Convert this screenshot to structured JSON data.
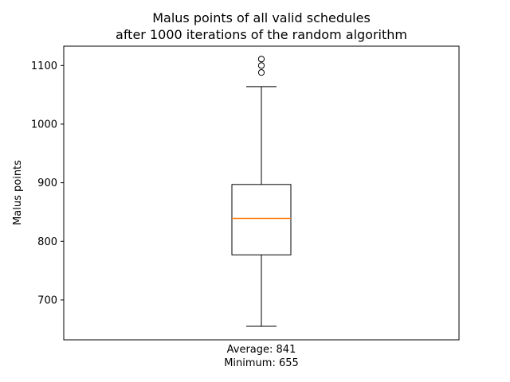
{
  "chart_data": {
    "type": "box",
    "title": "Malus points of all valid schedules",
    "subtitle": "after 1000 iterations of the random algorithm",
    "ylabel": "Malus points",
    "xlabel_lines": [
      "Average: 841",
      "Minimum: 655"
    ],
    "ylim": [
      632,
      1133
    ],
    "yticks": [
      700,
      800,
      900,
      1000,
      1100
    ],
    "grid": false,
    "box": {
      "whisker_low": 655,
      "q1": 777,
      "median": 839,
      "q3": 897,
      "whisker_high": 1064,
      "outliers": [
        1088,
        1100,
        1111
      ]
    },
    "colors": {
      "median": "#ff7f0e",
      "lines": "#000000"
    }
  }
}
